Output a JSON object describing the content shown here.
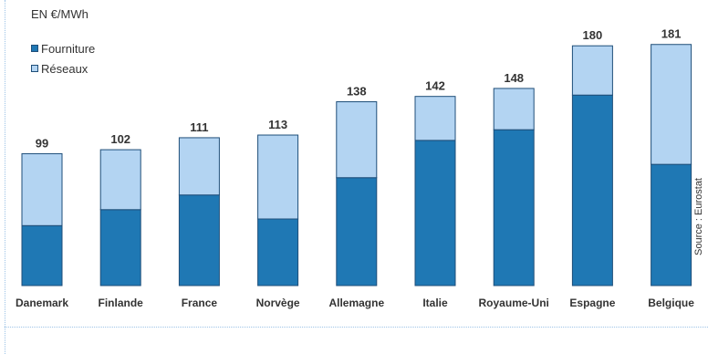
{
  "chart_data": {
    "type": "bar",
    "stacked": true,
    "unit_label": "EN €/MWh",
    "source": "Source : Eurostat",
    "categories": [
      "Danemark",
      "Finlande",
      "France",
      "Norvège",
      "Allemagne",
      "Italie",
      "Royaume-Uni",
      "Espagne",
      "Belgique"
    ],
    "totals": [
      99,
      102,
      111,
      113,
      138,
      142,
      148,
      180,
      181
    ],
    "series": [
      {
        "name": "Fourniture",
        "color": "#1f78b4",
        "values": [
          45,
          57,
          68,
          50,
          81,
          109,
          117,
          143,
          91
        ]
      },
      {
        "name": "Réseaux",
        "color": "#b3d4f2",
        "values": [
          54,
          45,
          43,
          63,
          57,
          33,
          31,
          37,
          90
        ]
      }
    ],
    "ylim": [
      0,
      200
    ],
    "grid": false,
    "legend": "top-left"
  }
}
